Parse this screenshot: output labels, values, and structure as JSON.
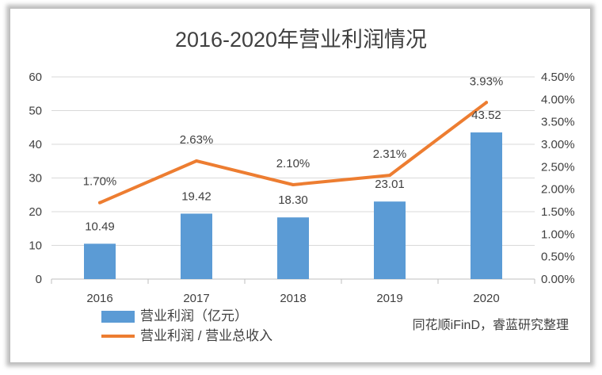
{
  "chart_data": {
    "type": "bar",
    "title": "2016-2020年营业利润情况",
    "categories": [
      "2016",
      "2017",
      "2018",
      "2019",
      "2020"
    ],
    "series": [
      {
        "name": "营业利润（亿元）",
        "type": "bar",
        "axis": "left",
        "color": "#5B9BD5",
        "values": [
          10.49,
          19.42,
          18.3,
          23.01,
          43.52
        ],
        "labels": [
          "10.49",
          "19.42",
          "18.30",
          "23.01",
          "43.52"
        ]
      },
      {
        "name": "营业利润 / 营业总收入",
        "type": "line",
        "axis": "right",
        "unit": "%",
        "color": "#ED7D31",
        "values": [
          1.7,
          2.63,
          2.1,
          2.31,
          3.93
        ],
        "labels": [
          "1.70%",
          "2.63%",
          "2.10%",
          "2.31%",
          "3.93%"
        ]
      }
    ],
    "y_left": {
      "ylim": [
        0,
        60
      ],
      "ticks": [
        "0",
        "10",
        "20",
        "30",
        "40",
        "50",
        "60"
      ]
    },
    "y_right": {
      "ylim": [
        0,
        4.5
      ],
      "unit": "%",
      "ticks": [
        "0.00%",
        "0.50%",
        "1.00%",
        "1.50%",
        "2.00%",
        "2.50%",
        "3.00%",
        "3.50%",
        "4.00%",
        "4.50%"
      ]
    },
    "xlabel": "",
    "grid": true,
    "legend_position": "bottom-left"
  },
  "source": "同花顺iFinD，睿蓝研究整理"
}
